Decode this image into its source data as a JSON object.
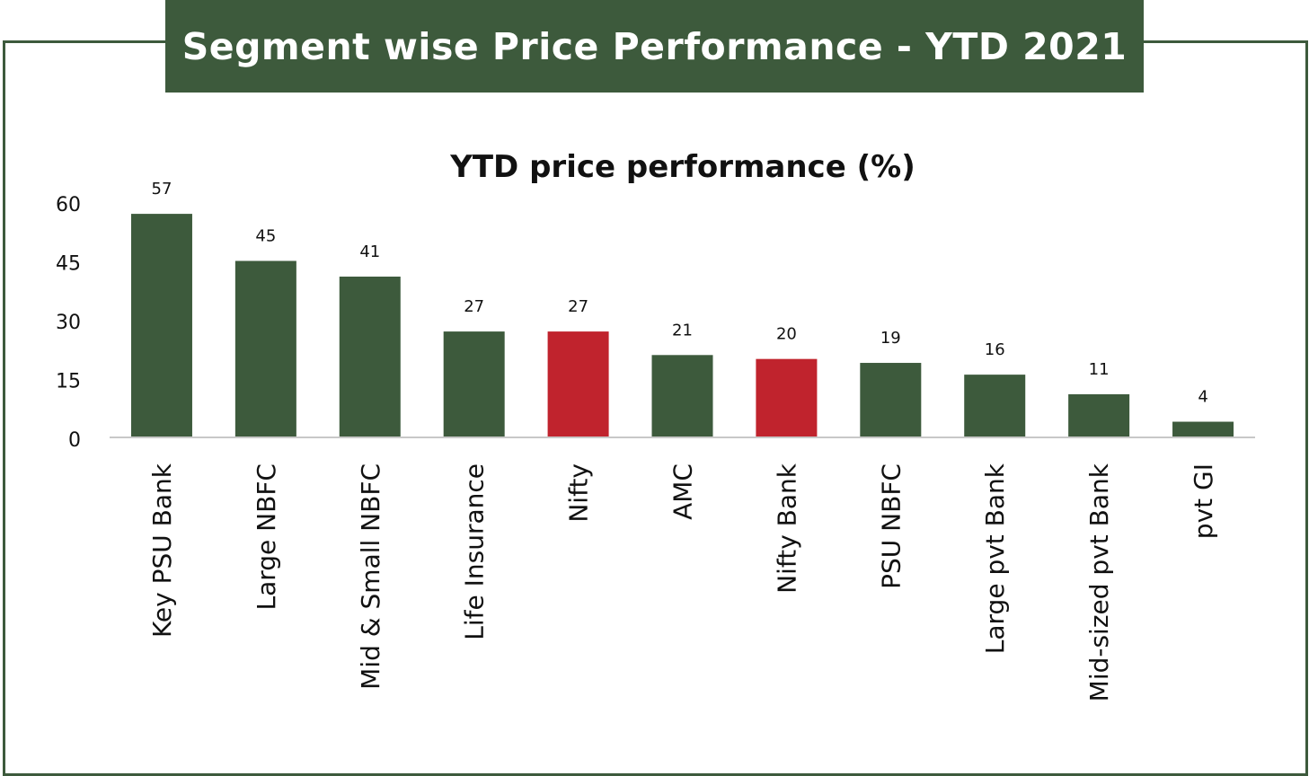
{
  "header": {
    "title": "Segment wise Price Performance - YTD 2021"
  },
  "colors": {
    "primary": "#3d5a3c",
    "highlight": "#c0232d",
    "axis": "#c8c8c8"
  },
  "chart_data": {
    "type": "bar",
    "title": "YTD price performance (%)",
    "xlabel": "",
    "ylabel": "",
    "categories": [
      "Key PSU Bank",
      "Large NBFC",
      "Mid & Small NBFC",
      "Life Insurance",
      "Nifty",
      "AMC",
      "Nifty Bank",
      "PSU NBFC",
      "Large pvt Bank",
      "Mid-sized pvt Bank",
      "pvt GI"
    ],
    "values": [
      57,
      45,
      41,
      27,
      27,
      21,
      20,
      19,
      16,
      11,
      4
    ],
    "highlighted": [
      "Nifty",
      "Nifty Bank"
    ],
    "ylim": [
      0,
      60
    ],
    "yticks": [
      0,
      15,
      30,
      45,
      60
    ],
    "grid": false,
    "legend": "none"
  }
}
